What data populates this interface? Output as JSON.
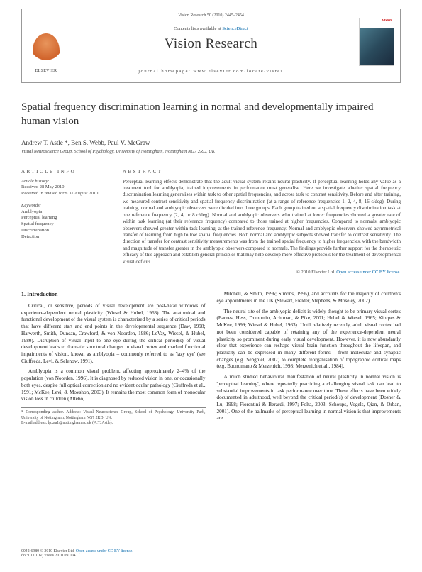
{
  "header": {
    "volume_info": "Vision Research 50 (2010) 2445–2454",
    "contents_label": "Contents lists available at",
    "contents_link": "ScienceDirect",
    "journal_name": "Vision Research",
    "homepage_label": "journal homepage: www.elsevier.com/locate/visres",
    "publisher": "ELSEVIER",
    "cover_brand": "VISION"
  },
  "article": {
    "title": "Spatial frequency discrimination learning in normal and developmentally impaired human vision",
    "authors": "Andrew T. Astle *, Ben S. Webb, Paul V. McGraw",
    "affiliation": "Visual Neuroscience Group, School of Psychology, University of Nottingham, Nottingham NG7 2RD, UK"
  },
  "info": {
    "heading": "ARTICLE INFO",
    "history_label": "Article history:",
    "received": "Received 28 May 2010",
    "revised": "Received in revised form 31 August 2010",
    "keywords_label": "Keywords:",
    "keywords": [
      "Amblyopia",
      "Perceptual learning",
      "Spatial frequency",
      "Discrimination",
      "Detection"
    ]
  },
  "abstract": {
    "heading": "ABSTRACT",
    "text": "Perceptual learning effects demonstrate that the adult visual system retains neural plasticity. If perceptual learning holds any value as a treatment tool for amblyopia, trained improvements in performance must generalise. Here we investigate whether spatial frequency discrimination learning generalises within task to other spatial frequencies, and across task to contrast sensitivity. Before and after training, we measured contrast sensitivity and spatial frequency discrimination (at a range of reference frequencies 1, 2, 4, 8, 16 c/deg). During training, normal and amblyopic observers were divided into three groups. Each group trained on a spatial frequency discrimination task at one reference frequency (2, 4, or 8 c/deg). Normal and amblyopic observers who trained at lower frequencies showed a greater rate of within task learning (at their reference frequency) compared to those trained at higher frequencies. Compared to normals, amblyopic observers showed greater within task learning, at the trained reference frequency. Normal and amblyopic observers showed asymmetrical transfer of learning from high to low spatial frequencies. Both normal and amblyopic subjects showed transfer to contrast sensitivity. The direction of transfer for contrast sensitivity measurements was from the trained spatial frequency to higher frequencies, with the bandwidth and magnitude of transfer greater in the amblyopic observers compared to normals. The findings provide further support for the therapeutic efficacy of this approach and establish general principles that may help develop more effective protocols for the treatment of developmental visual deficits.",
    "copyright": "© 2010 Elsevier Ltd.",
    "license": "Open access under CC BY license."
  },
  "body": {
    "section_heading": "1. Introduction",
    "col1_p1": "Critical, or sensitive, periods of visual development are post-natal windows of experience-dependent neural plasticity (Wiesel & Hubel, 1963). The anatomical and functional development of the visual system is characterised by a series of critical periods that have different start and end points in the developmental sequence (Daw, 1998; Harwerth, Smith, Duncan, Crawford, & von Noorden, 1986; LeVay, Wiesel, & Hubel, 1980). Disruption of visual input to one eye during the critical period(s) of visual development leads to dramatic structural changes in visual cortex and marked functional impairments of vision, known as amblyopia – commonly referred to as 'lazy eye' (see Ciuffreda, Levi, & Selenow, 1991).",
    "col1_p2": "Amblyopia is a common visual problem, affecting approximately 2–4% of the population (von Noorden, 1996). It is diagnosed by reduced vision in one, or occasionally both eyes, despite full optical correction and no evident ocular pathology (Ciuffreda et al., 1991; McKee, Levi, & Movshon, 2003). It remains the most common form of monocular vision loss in children (Attebo,",
    "col2_p1": "Mitchell, & Smith, 1996; Simons, 1996), and accounts for the majority of children's eye appointments in the UK (Stewart, Fielder, Stephens, & Moseley, 2002).",
    "col2_p2": "The neural site of the amblyopic deficit is widely thought to be primary visual cortex (Barnes, Hess, Dumoulin, Achtman, & Pike, 2001; Hubel & Wiesel, 1965; Kiorpes & McKee, 1999; Wiesel & Hubel, 1963). Until relatively recently, adult visual cortex had not been considered capable of retaining any of the experience-dependent neural plasticity so prominent during early visual development. However, it is now abundantly clear that experience can reshape visual brain function throughout the lifespan, and plasticity can be expressed in many different forms – from molecular and synaptic changes (e.g. Sengpiel, 2007) to complete reorganisation of topographic cortical maps (e.g. Buonomano & Merzenich, 1998; Merzenich et al., 1984).",
    "col2_p3": "A much studied behavioural manifestation of neural plasticity in normal vision is 'perceptual learning', where repeatedly practicing a challenging visual task can lead to substantial improvements in task performance over time. These effects have been widely documented in adulthood, well beyond the critical period(s) of development (Dosher & Lu, 1998; Fiorentini & Berardi, 1997; Folta, 2003; Schoups, Vogels, Qian, & Orban, 2001). One of the hallmarks of perceptual learning in normal vision is that improvements are"
  },
  "footnote": {
    "corresponding": "* Corresponding author. Address: Visual Neuroscience Group, School of Psychology, University Park, University of Nottingham, Nottingham NG7 2RD, UK.",
    "email": "E-mail address: lpxaa1@nottingham.ac.uk (A.T. Astle)."
  },
  "footer": {
    "issn": "0042-6989 © 2010 Elsevier Ltd.",
    "license": "Open access under CC BY license.",
    "doi": "doi:10.1016/j.visres.2010.09.004"
  },
  "colors": {
    "link": "#0066aa",
    "border": "#888888",
    "text": "#222222",
    "muted": "#444444",
    "elsevier_orange": "#d0622a"
  }
}
